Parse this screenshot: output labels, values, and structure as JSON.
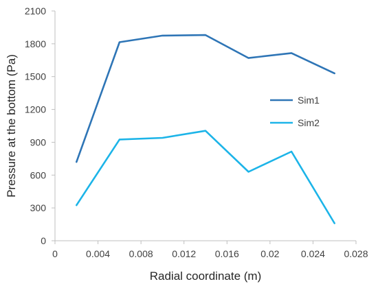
{
  "chart_data": {
    "type": "line",
    "title": "",
    "xlabel": "Radial coordinate (m)",
    "ylabel": "Pressure at the bottom (Pa)",
    "xlim": [
      0,
      0.028
    ],
    "ylim": [
      0,
      2100
    ],
    "x_ticks": [
      0,
      0.004,
      0.008,
      0.012,
      0.016,
      0.02,
      0.024,
      0.028
    ],
    "x_tick_labels": [
      "0",
      "0.004",
      "0.008",
      "0.012",
      "0.016",
      "0.02",
      "0.024",
      "0.028"
    ],
    "y_ticks": [
      0,
      300,
      600,
      900,
      1200,
      1500,
      1800,
      2100
    ],
    "y_tick_labels": [
      "0",
      "300",
      "600",
      "900",
      "1200",
      "1500",
      "1800",
      "2100"
    ],
    "grid": false,
    "legend_position": "right",
    "x": [
      0.002,
      0.006,
      0.01,
      0.014,
      0.018,
      0.022,
      0.026
    ],
    "series": [
      {
        "name": "Sim1",
        "color": "#2E75B6",
        "values": [
          720,
          1815,
          1875,
          1880,
          1670,
          1715,
          1530
        ]
      },
      {
        "name": "Sim2",
        "color": "#1CB4E8",
        "values": [
          325,
          925,
          940,
          1005,
          630,
          815,
          160
        ]
      }
    ]
  }
}
